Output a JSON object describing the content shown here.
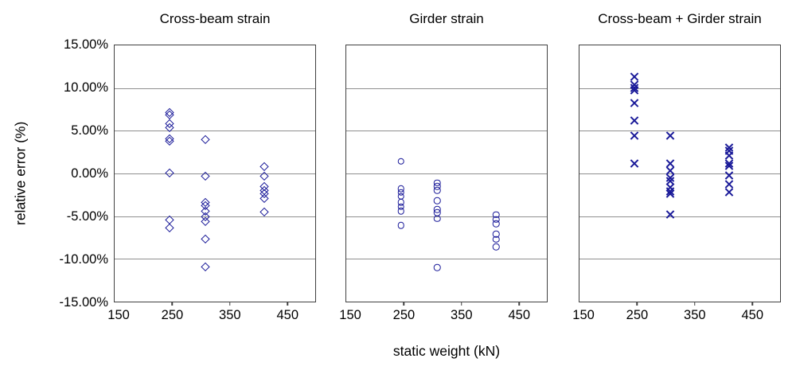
{
  "figure": {
    "y_axis_title": "relative error (%)",
    "x_axis_title": "static weight (kN)",
    "y_tick_labels": [
      "15.00%",
      "10.00%",
      "5.00%",
      "0.00%",
      "-5.00%",
      "-10.00%",
      "-15.00%"
    ],
    "x_tick_labels": [
      "150",
      "250",
      "350",
      "450"
    ],
    "marker_color": "#1a1a99",
    "grid_color": "#8f8f8f",
    "frame_color": "#404040",
    "background_color": "#ffffff"
  },
  "chart_data": [
    {
      "type": "scatter",
      "title": "Cross-beam strain",
      "marker": "diamond",
      "xlabel": "static weight (kN)",
      "ylabel": "relative error (%)",
      "xlim": [
        150,
        498
      ],
      "ylim": [
        -15,
        15
      ],
      "x_ticks": [
        150,
        250,
        350,
        450
      ],
      "y_ticks": [
        15,
        10,
        5,
        0,
        -5,
        -10,
        -15
      ],
      "grid": true,
      "groups": [
        {
          "x": 245,
          "y": [
            7.2,
            6.9,
            5.9,
            5.4,
            4.1,
            3.8,
            0.1,
            -5.4,
            -6.3
          ]
        },
        {
          "x": 308,
          "y": [
            4.0,
            -0.3,
            -3.4,
            -3.7,
            -4.4,
            -5.0,
            -5.6,
            -7.6,
            -10.9
          ]
        },
        {
          "x": 410,
          "y": [
            0.8,
            -0.3,
            -1.5,
            -2.0,
            -2.3,
            -2.9,
            -4.5
          ]
        }
      ]
    },
    {
      "type": "scatter",
      "title": "Girder strain",
      "marker": "circle",
      "xlabel": "static weight (kN)",
      "ylabel": "relative error (%)",
      "xlim": [
        150,
        498
      ],
      "ylim": [
        -15,
        15
      ],
      "x_ticks": [
        150,
        250,
        350,
        450
      ],
      "y_ticks": [
        15,
        10,
        5,
        0,
        -5,
        -10,
        -15
      ],
      "grid": true,
      "groups": [
        {
          "x": 245,
          "y": [
            1.4,
            -1.8,
            -2.2,
            -2.7,
            -3.4,
            -3.9,
            -4.4,
            -6.1
          ]
        },
        {
          "x": 308,
          "y": [
            -1.1,
            -1.5,
            -2.0,
            -3.2,
            -4.2,
            -4.6,
            -5.3,
            -11.0
          ]
        },
        {
          "x": 410,
          "y": [
            -4.8,
            -5.4,
            -5.9,
            -7.1,
            -7.7,
            -8.6
          ]
        }
      ]
    },
    {
      "type": "scatter",
      "title": "Cross-beam + Girder strain",
      "marker": "x",
      "xlabel": "static weight (kN)",
      "ylabel": "relative error (%)",
      "xlim": [
        150,
        498
      ],
      "ylim": [
        -15,
        15
      ],
      "x_ticks": [
        150,
        250,
        350,
        450
      ],
      "y_ticks": [
        15,
        10,
        5,
        0,
        -5,
        -10,
        -15
      ],
      "grid": true,
      "groups": [
        {
          "x": 245,
          "y": [
            11.3,
            10.4,
            10.0,
            9.7,
            8.2,
            6.2,
            4.4,
            1.2
          ]
        },
        {
          "x": 308,
          "y": [
            4.4,
            1.2,
            0.3,
            -0.5,
            -0.9,
            -1.6,
            -2.1,
            -2.4,
            -4.8
          ]
        },
        {
          "x": 410,
          "y": [
            3.0,
            2.7,
            2.1,
            1.2,
            0.9,
            -0.2,
            -1.3,
            -2.2
          ]
        }
      ]
    }
  ]
}
